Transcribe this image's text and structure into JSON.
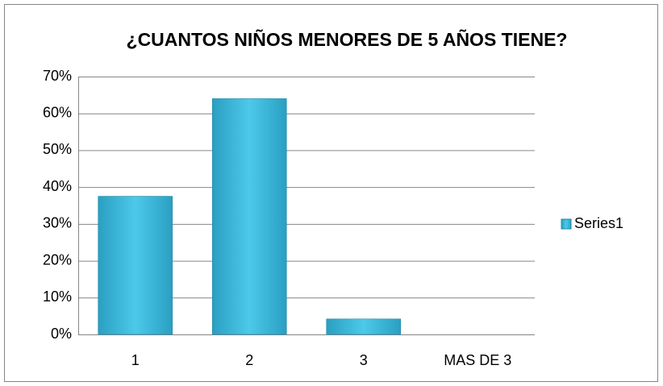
{
  "chart_data": {
    "type": "bar",
    "title": "¿CUANTOS NIÑOS MENORES DE 5 AÑOS TIENE?",
    "categories": [
      "1",
      "2",
      "3",
      "MAS DE 3"
    ],
    "series": [
      {
        "name": "Series1",
        "color": "#3cb9dc",
        "values": [
          37.5,
          64,
          4.2,
          0
        ]
      }
    ],
    "ylim": [
      0,
      70
    ],
    "yticks": [
      {
        "value": 0,
        "label": "0%"
      },
      {
        "value": 10,
        "label": "10%"
      },
      {
        "value": 20,
        "label": "20%"
      },
      {
        "value": 30,
        "label": "30%"
      },
      {
        "value": 40,
        "label": "40%"
      },
      {
        "value": 50,
        "label": "50%"
      },
      {
        "value": 60,
        "label": "60%"
      },
      {
        "value": 70,
        "label": "70%"
      }
    ],
    "grid": true,
    "legend": "right"
  }
}
